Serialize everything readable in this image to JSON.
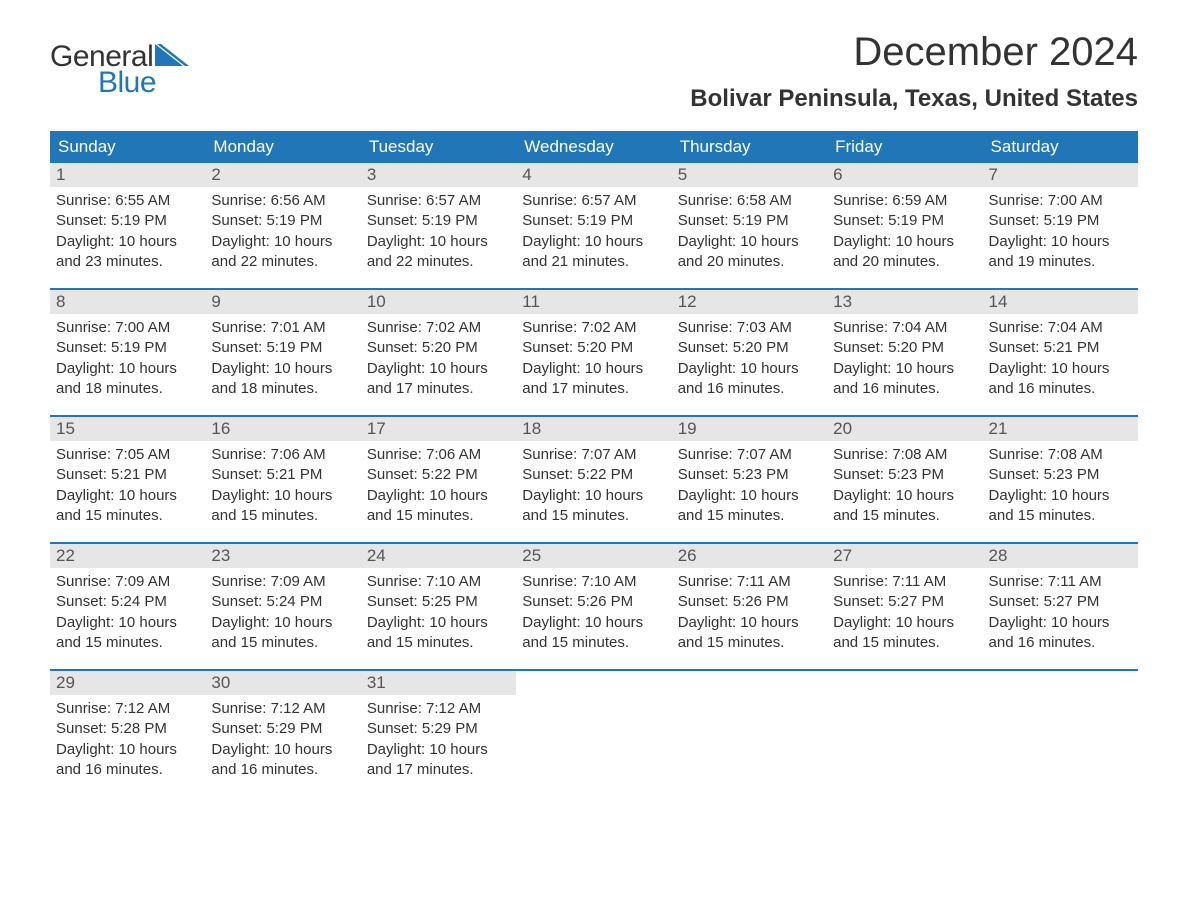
{
  "logo": {
    "text1": "General",
    "text2": "Blue",
    "icon_color": "#2176b8"
  },
  "title": "December 2024",
  "location": "Bolivar Peninsula, Texas, United States",
  "header_color": "#2176b8",
  "daynum_bg": "#e6e6e6",
  "text_color": "#333333",
  "weekdays": [
    "Sunday",
    "Monday",
    "Tuesday",
    "Wednesday",
    "Thursday",
    "Friday",
    "Saturday"
  ],
  "weeks": [
    [
      {
        "n": "1",
        "sunrise": "Sunrise: 6:55 AM",
        "sunset": "Sunset: 5:19 PM",
        "d1": "Daylight: 10 hours",
        "d2": "and 23 minutes."
      },
      {
        "n": "2",
        "sunrise": "Sunrise: 6:56 AM",
        "sunset": "Sunset: 5:19 PM",
        "d1": "Daylight: 10 hours",
        "d2": "and 22 minutes."
      },
      {
        "n": "3",
        "sunrise": "Sunrise: 6:57 AM",
        "sunset": "Sunset: 5:19 PM",
        "d1": "Daylight: 10 hours",
        "d2": "and 22 minutes."
      },
      {
        "n": "4",
        "sunrise": "Sunrise: 6:57 AM",
        "sunset": "Sunset: 5:19 PM",
        "d1": "Daylight: 10 hours",
        "d2": "and 21 minutes."
      },
      {
        "n": "5",
        "sunrise": "Sunrise: 6:58 AM",
        "sunset": "Sunset: 5:19 PM",
        "d1": "Daylight: 10 hours",
        "d2": "and 20 minutes."
      },
      {
        "n": "6",
        "sunrise": "Sunrise: 6:59 AM",
        "sunset": "Sunset: 5:19 PM",
        "d1": "Daylight: 10 hours",
        "d2": "and 20 minutes."
      },
      {
        "n": "7",
        "sunrise": "Sunrise: 7:00 AM",
        "sunset": "Sunset: 5:19 PM",
        "d1": "Daylight: 10 hours",
        "d2": "and 19 minutes."
      }
    ],
    [
      {
        "n": "8",
        "sunrise": "Sunrise: 7:00 AM",
        "sunset": "Sunset: 5:19 PM",
        "d1": "Daylight: 10 hours",
        "d2": "and 18 minutes."
      },
      {
        "n": "9",
        "sunrise": "Sunrise: 7:01 AM",
        "sunset": "Sunset: 5:19 PM",
        "d1": "Daylight: 10 hours",
        "d2": "and 18 minutes."
      },
      {
        "n": "10",
        "sunrise": "Sunrise: 7:02 AM",
        "sunset": "Sunset: 5:20 PM",
        "d1": "Daylight: 10 hours",
        "d2": "and 17 minutes."
      },
      {
        "n": "11",
        "sunrise": "Sunrise: 7:02 AM",
        "sunset": "Sunset: 5:20 PM",
        "d1": "Daylight: 10 hours",
        "d2": "and 17 minutes."
      },
      {
        "n": "12",
        "sunrise": "Sunrise: 7:03 AM",
        "sunset": "Sunset: 5:20 PM",
        "d1": "Daylight: 10 hours",
        "d2": "and 16 minutes."
      },
      {
        "n": "13",
        "sunrise": "Sunrise: 7:04 AM",
        "sunset": "Sunset: 5:20 PM",
        "d1": "Daylight: 10 hours",
        "d2": "and 16 minutes."
      },
      {
        "n": "14",
        "sunrise": "Sunrise: 7:04 AM",
        "sunset": "Sunset: 5:21 PM",
        "d1": "Daylight: 10 hours",
        "d2": "and 16 minutes."
      }
    ],
    [
      {
        "n": "15",
        "sunrise": "Sunrise: 7:05 AM",
        "sunset": "Sunset: 5:21 PM",
        "d1": "Daylight: 10 hours",
        "d2": "and 15 minutes."
      },
      {
        "n": "16",
        "sunrise": "Sunrise: 7:06 AM",
        "sunset": "Sunset: 5:21 PM",
        "d1": "Daylight: 10 hours",
        "d2": "and 15 minutes."
      },
      {
        "n": "17",
        "sunrise": "Sunrise: 7:06 AM",
        "sunset": "Sunset: 5:22 PM",
        "d1": "Daylight: 10 hours",
        "d2": "and 15 minutes."
      },
      {
        "n": "18",
        "sunrise": "Sunrise: 7:07 AM",
        "sunset": "Sunset: 5:22 PM",
        "d1": "Daylight: 10 hours",
        "d2": "and 15 minutes."
      },
      {
        "n": "19",
        "sunrise": "Sunrise: 7:07 AM",
        "sunset": "Sunset: 5:23 PM",
        "d1": "Daylight: 10 hours",
        "d2": "and 15 minutes."
      },
      {
        "n": "20",
        "sunrise": "Sunrise: 7:08 AM",
        "sunset": "Sunset: 5:23 PM",
        "d1": "Daylight: 10 hours",
        "d2": "and 15 minutes."
      },
      {
        "n": "21",
        "sunrise": "Sunrise: 7:08 AM",
        "sunset": "Sunset: 5:23 PM",
        "d1": "Daylight: 10 hours",
        "d2": "and 15 minutes."
      }
    ],
    [
      {
        "n": "22",
        "sunrise": "Sunrise: 7:09 AM",
        "sunset": "Sunset: 5:24 PM",
        "d1": "Daylight: 10 hours",
        "d2": "and 15 minutes."
      },
      {
        "n": "23",
        "sunrise": "Sunrise: 7:09 AM",
        "sunset": "Sunset: 5:24 PM",
        "d1": "Daylight: 10 hours",
        "d2": "and 15 minutes."
      },
      {
        "n": "24",
        "sunrise": "Sunrise: 7:10 AM",
        "sunset": "Sunset: 5:25 PM",
        "d1": "Daylight: 10 hours",
        "d2": "and 15 minutes."
      },
      {
        "n": "25",
        "sunrise": "Sunrise: 7:10 AM",
        "sunset": "Sunset: 5:26 PM",
        "d1": "Daylight: 10 hours",
        "d2": "and 15 minutes."
      },
      {
        "n": "26",
        "sunrise": "Sunrise: 7:11 AM",
        "sunset": "Sunset: 5:26 PM",
        "d1": "Daylight: 10 hours",
        "d2": "and 15 minutes."
      },
      {
        "n": "27",
        "sunrise": "Sunrise: 7:11 AM",
        "sunset": "Sunset: 5:27 PM",
        "d1": "Daylight: 10 hours",
        "d2": "and 15 minutes."
      },
      {
        "n": "28",
        "sunrise": "Sunrise: 7:11 AM",
        "sunset": "Sunset: 5:27 PM",
        "d1": "Daylight: 10 hours",
        "d2": "and 16 minutes."
      }
    ],
    [
      {
        "n": "29",
        "sunrise": "Sunrise: 7:12 AM",
        "sunset": "Sunset: 5:28 PM",
        "d1": "Daylight: 10 hours",
        "d2": "and 16 minutes."
      },
      {
        "n": "30",
        "sunrise": "Sunrise: 7:12 AM",
        "sunset": "Sunset: 5:29 PM",
        "d1": "Daylight: 10 hours",
        "d2": "and 16 minutes."
      },
      {
        "n": "31",
        "sunrise": "Sunrise: 7:12 AM",
        "sunset": "Sunset: 5:29 PM",
        "d1": "Daylight: 10 hours",
        "d2": "and 17 minutes."
      },
      {
        "empty": true
      },
      {
        "empty": true
      },
      {
        "empty": true
      },
      {
        "empty": true
      }
    ]
  ]
}
